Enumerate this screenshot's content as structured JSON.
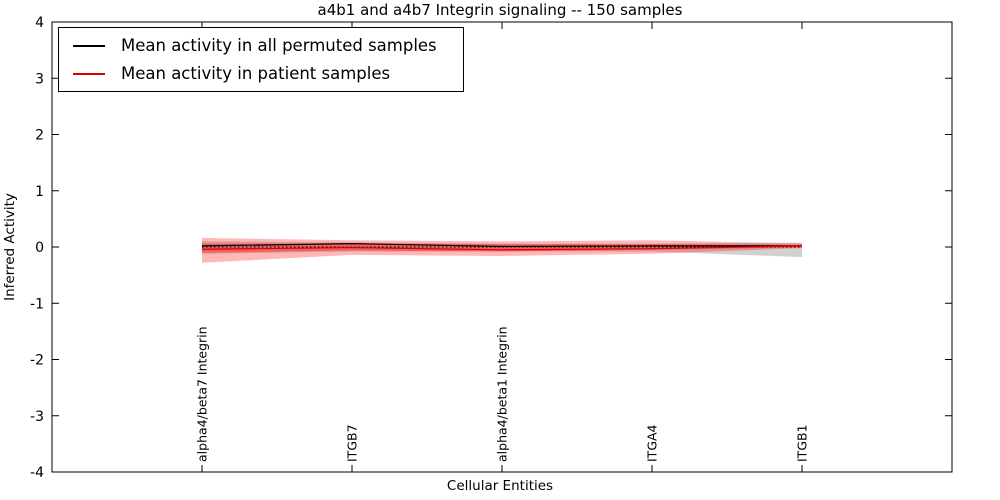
{
  "chart_data": {
    "type": "line",
    "title": "a4b1 and a4b7 Integrin signaling -- 150 samples",
    "xlabel": "Cellular Entities",
    "ylabel": "Inferred Activity",
    "ylim": [
      -4,
      4
    ],
    "yticks": [
      -4,
      -3,
      -2,
      -1,
      0,
      1,
      2,
      3,
      4
    ],
    "grid": false,
    "legend_position": "upper left",
    "categories": [
      "alpha4/beta7 Integrin",
      "ITGB7",
      "alpha4/beta1 Integrin",
      "ITGA4",
      "ITGB1"
    ],
    "series": [
      {
        "name": "Mean activity in all permuted samples",
        "color": "#000000",
        "style": "solid",
        "values": [
          0.02,
          0.06,
          0.01,
          0.02,
          0.02
        ]
      },
      {
        "name": "Mean activity in patient samples",
        "color": "#dd0000",
        "style": "solid",
        "values": [
          -0.04,
          -0.01,
          -0.05,
          -0.03,
          0.02
        ]
      }
    ],
    "bands": [
      {
        "name": "permuted-samples-std-band",
        "color": "#999999",
        "opacity": 0.45,
        "upper": [
          0.1,
          0.08,
          0.06,
          0.06,
          0.08
        ],
        "lower": [
          -0.12,
          -0.08,
          -0.08,
          -0.08,
          -0.18
        ]
      },
      {
        "name": "patient-samples-std-band",
        "color": "#ff0000",
        "opacity": 0.28,
        "upper": [
          0.16,
          0.12,
          0.1,
          0.12,
          0.06
        ],
        "lower": [
          -0.28,
          -0.14,
          -0.16,
          -0.12,
          -0.02
        ]
      },
      {
        "name": "patient-samples-inner-band",
        "color": "#ff0000",
        "opacity": 0.35,
        "upper": [
          0.06,
          0.06,
          0.05,
          0.05,
          0.04
        ],
        "lower": [
          -0.1,
          -0.06,
          -0.08,
          -0.05,
          -0.01
        ]
      }
    ],
    "zero_line": {
      "value": 0,
      "style": "dotted",
      "color": "#000000"
    }
  }
}
